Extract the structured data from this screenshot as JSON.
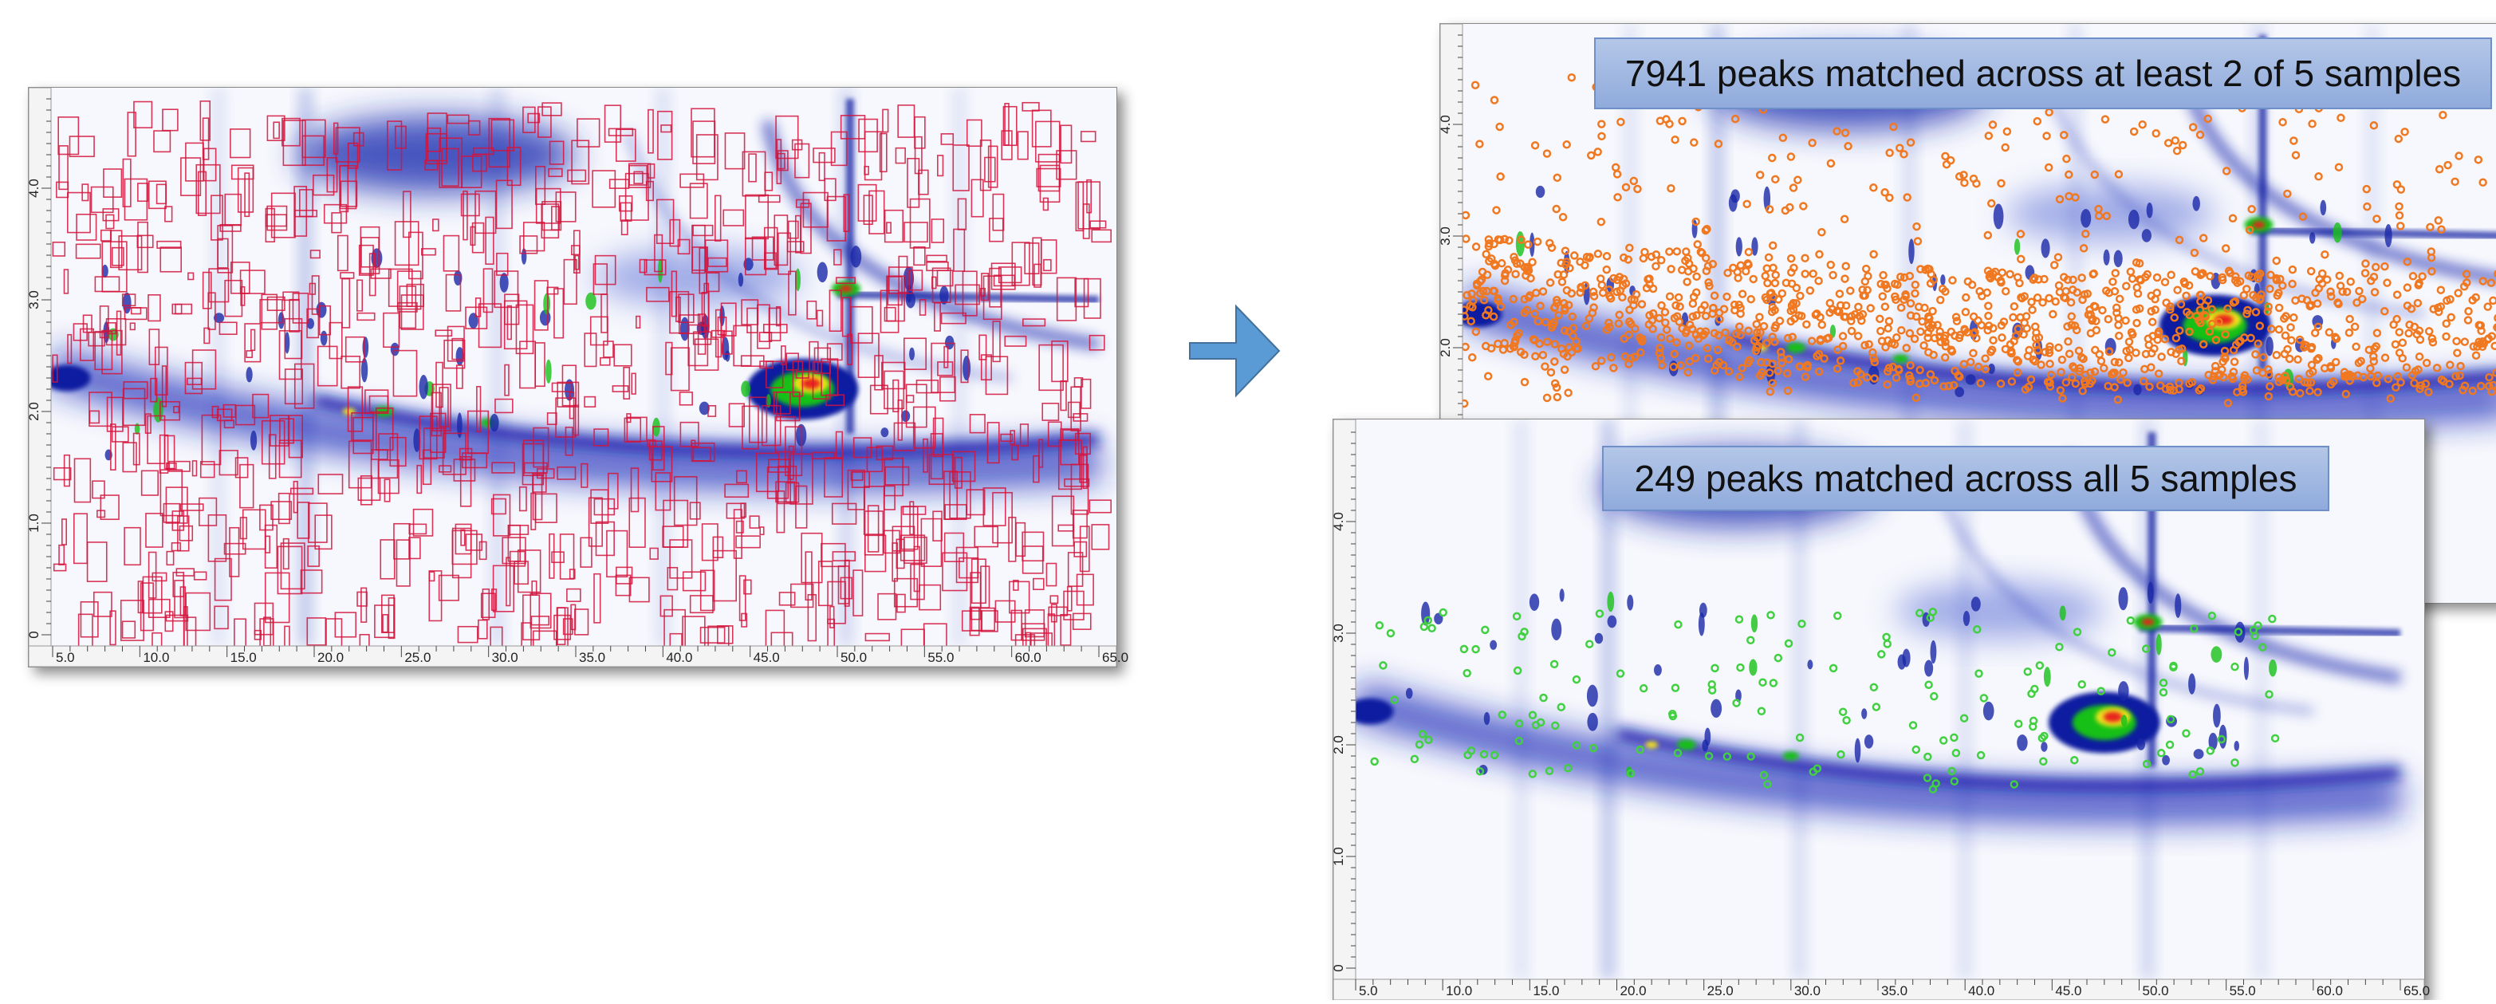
{
  "panels": {
    "left": {
      "x_ticks": [
        "5.0",
        "10.0",
        "15.0",
        "20.0",
        "25.0",
        "30.0",
        "35.0",
        "40.0",
        "45.0",
        "50.0",
        "55.0",
        "60.0",
        "65.0"
      ],
      "y_ticks": [
        "0",
        "1.0",
        "2.0",
        "3.0",
        "4.0"
      ]
    },
    "top_right": {
      "caption": "7941 peaks matched across at least 2 of 5 samples",
      "y_ticks": [
        "2.0",
        "3.0",
        "4.0"
      ]
    },
    "bottom_right": {
      "caption": "249 peaks matched across all 5 samples",
      "x_ticks": [
        "5.0",
        "10.0",
        "15.0",
        "20.0",
        "25.0",
        "30.0",
        "35.0",
        "40.0",
        "45.0",
        "50.0",
        "55.0",
        "60.0",
        "65.0"
      ],
      "y_ticks": [
        "0",
        "1.0",
        "2.0",
        "3.0",
        "4.0"
      ]
    }
  }
}
